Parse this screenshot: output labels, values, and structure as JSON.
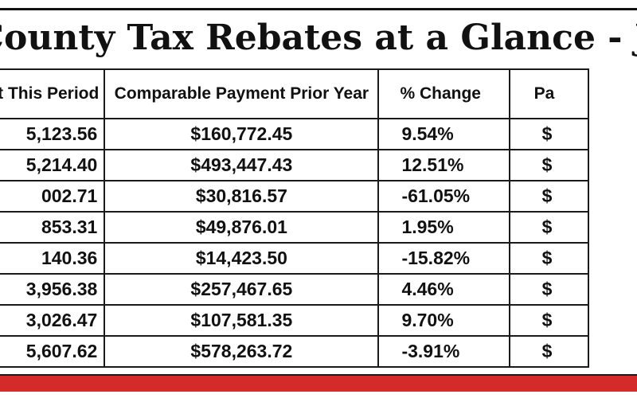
{
  "title": "County Tax Rebates at a Glance - Janua",
  "headers": [
    "ent This Period",
    "Comparable Payment Prior Year",
    "% Change",
    "Pa"
  ],
  "rows": [
    [
      "5,123.56",
      "$160,772.45",
      "9.54%",
      "$"
    ],
    [
      "5,214.40",
      "$493,447.43",
      "12.51%",
      "$"
    ],
    [
      "002.71",
      "$30,816.57",
      "-61.05%",
      "$"
    ],
    [
      "853.31",
      "$49,876.01",
      "1.95%",
      "$"
    ],
    [
      "140.36",
      "$14,423.50",
      "-15.82%",
      "$"
    ],
    [
      "3,956.38",
      "$257,467.65",
      "4.46%",
      "$"
    ],
    [
      "3,026.47",
      "$107,581.35",
      "9.70%",
      "$"
    ],
    [
      "5,607.62",
      "$578,263.72",
      "-3.91%",
      "$"
    ]
  ],
  "colors": {
    "accent_bar": "#d42a2a",
    "rule": "#1a1a1a"
  }
}
